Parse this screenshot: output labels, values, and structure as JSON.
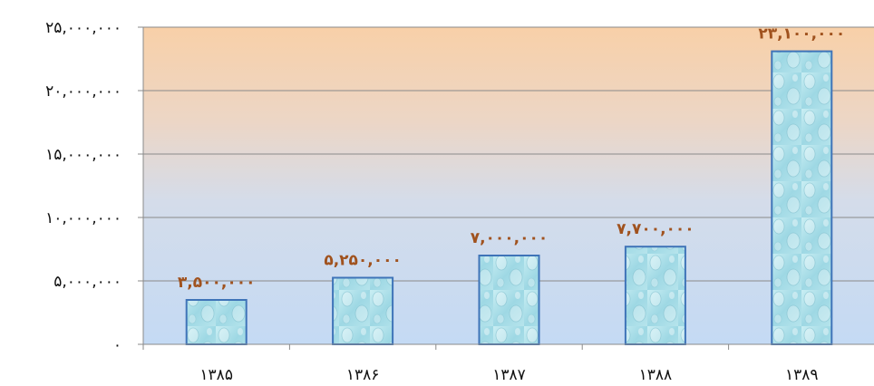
{
  "chart_data": {
    "type": "bar",
    "categories": [
      "۱۳۸۵",
      "۱۳۸۶",
      "۱۳۸۷",
      "۱۳۸۸",
      "۱۳۸۹"
    ],
    "values": [
      3500000,
      5250000,
      7000000,
      7700000,
      23100000
    ],
    "data_labels": [
      "۳,۵۰۰,۰۰۰",
      "۵,۲۵۰,۰۰۰",
      "۷,۰۰۰,۰۰۰",
      "۷,۷۰۰,۰۰۰",
      "۲۳,۱۰۰,۰۰۰"
    ],
    "y_ticks": [
      0,
      5000000,
      10000000,
      15000000,
      20000000,
      25000000
    ],
    "y_tick_labels": [
      "۰",
      "۵,۰۰۰,۰۰۰",
      "۱۰,۰۰۰,۰۰۰",
      "۱۵,۰۰۰,۰۰۰",
      "۲۰,۰۰۰,۰۰۰",
      "۲۵,۰۰۰,۰۰۰"
    ],
    "ylim": [
      0,
      25000000
    ],
    "title": "",
    "xlabel": "",
    "ylabel": "",
    "grid": true,
    "legend": "none",
    "colors": {
      "bar_fill": "#a8e0ea",
      "bar_stroke": "#3f74b8",
      "label": "#a0521e",
      "grid": "#8a8a8a",
      "plot_top": "#f7cfa9",
      "plot_bottom": "#c8dcf3"
    }
  }
}
